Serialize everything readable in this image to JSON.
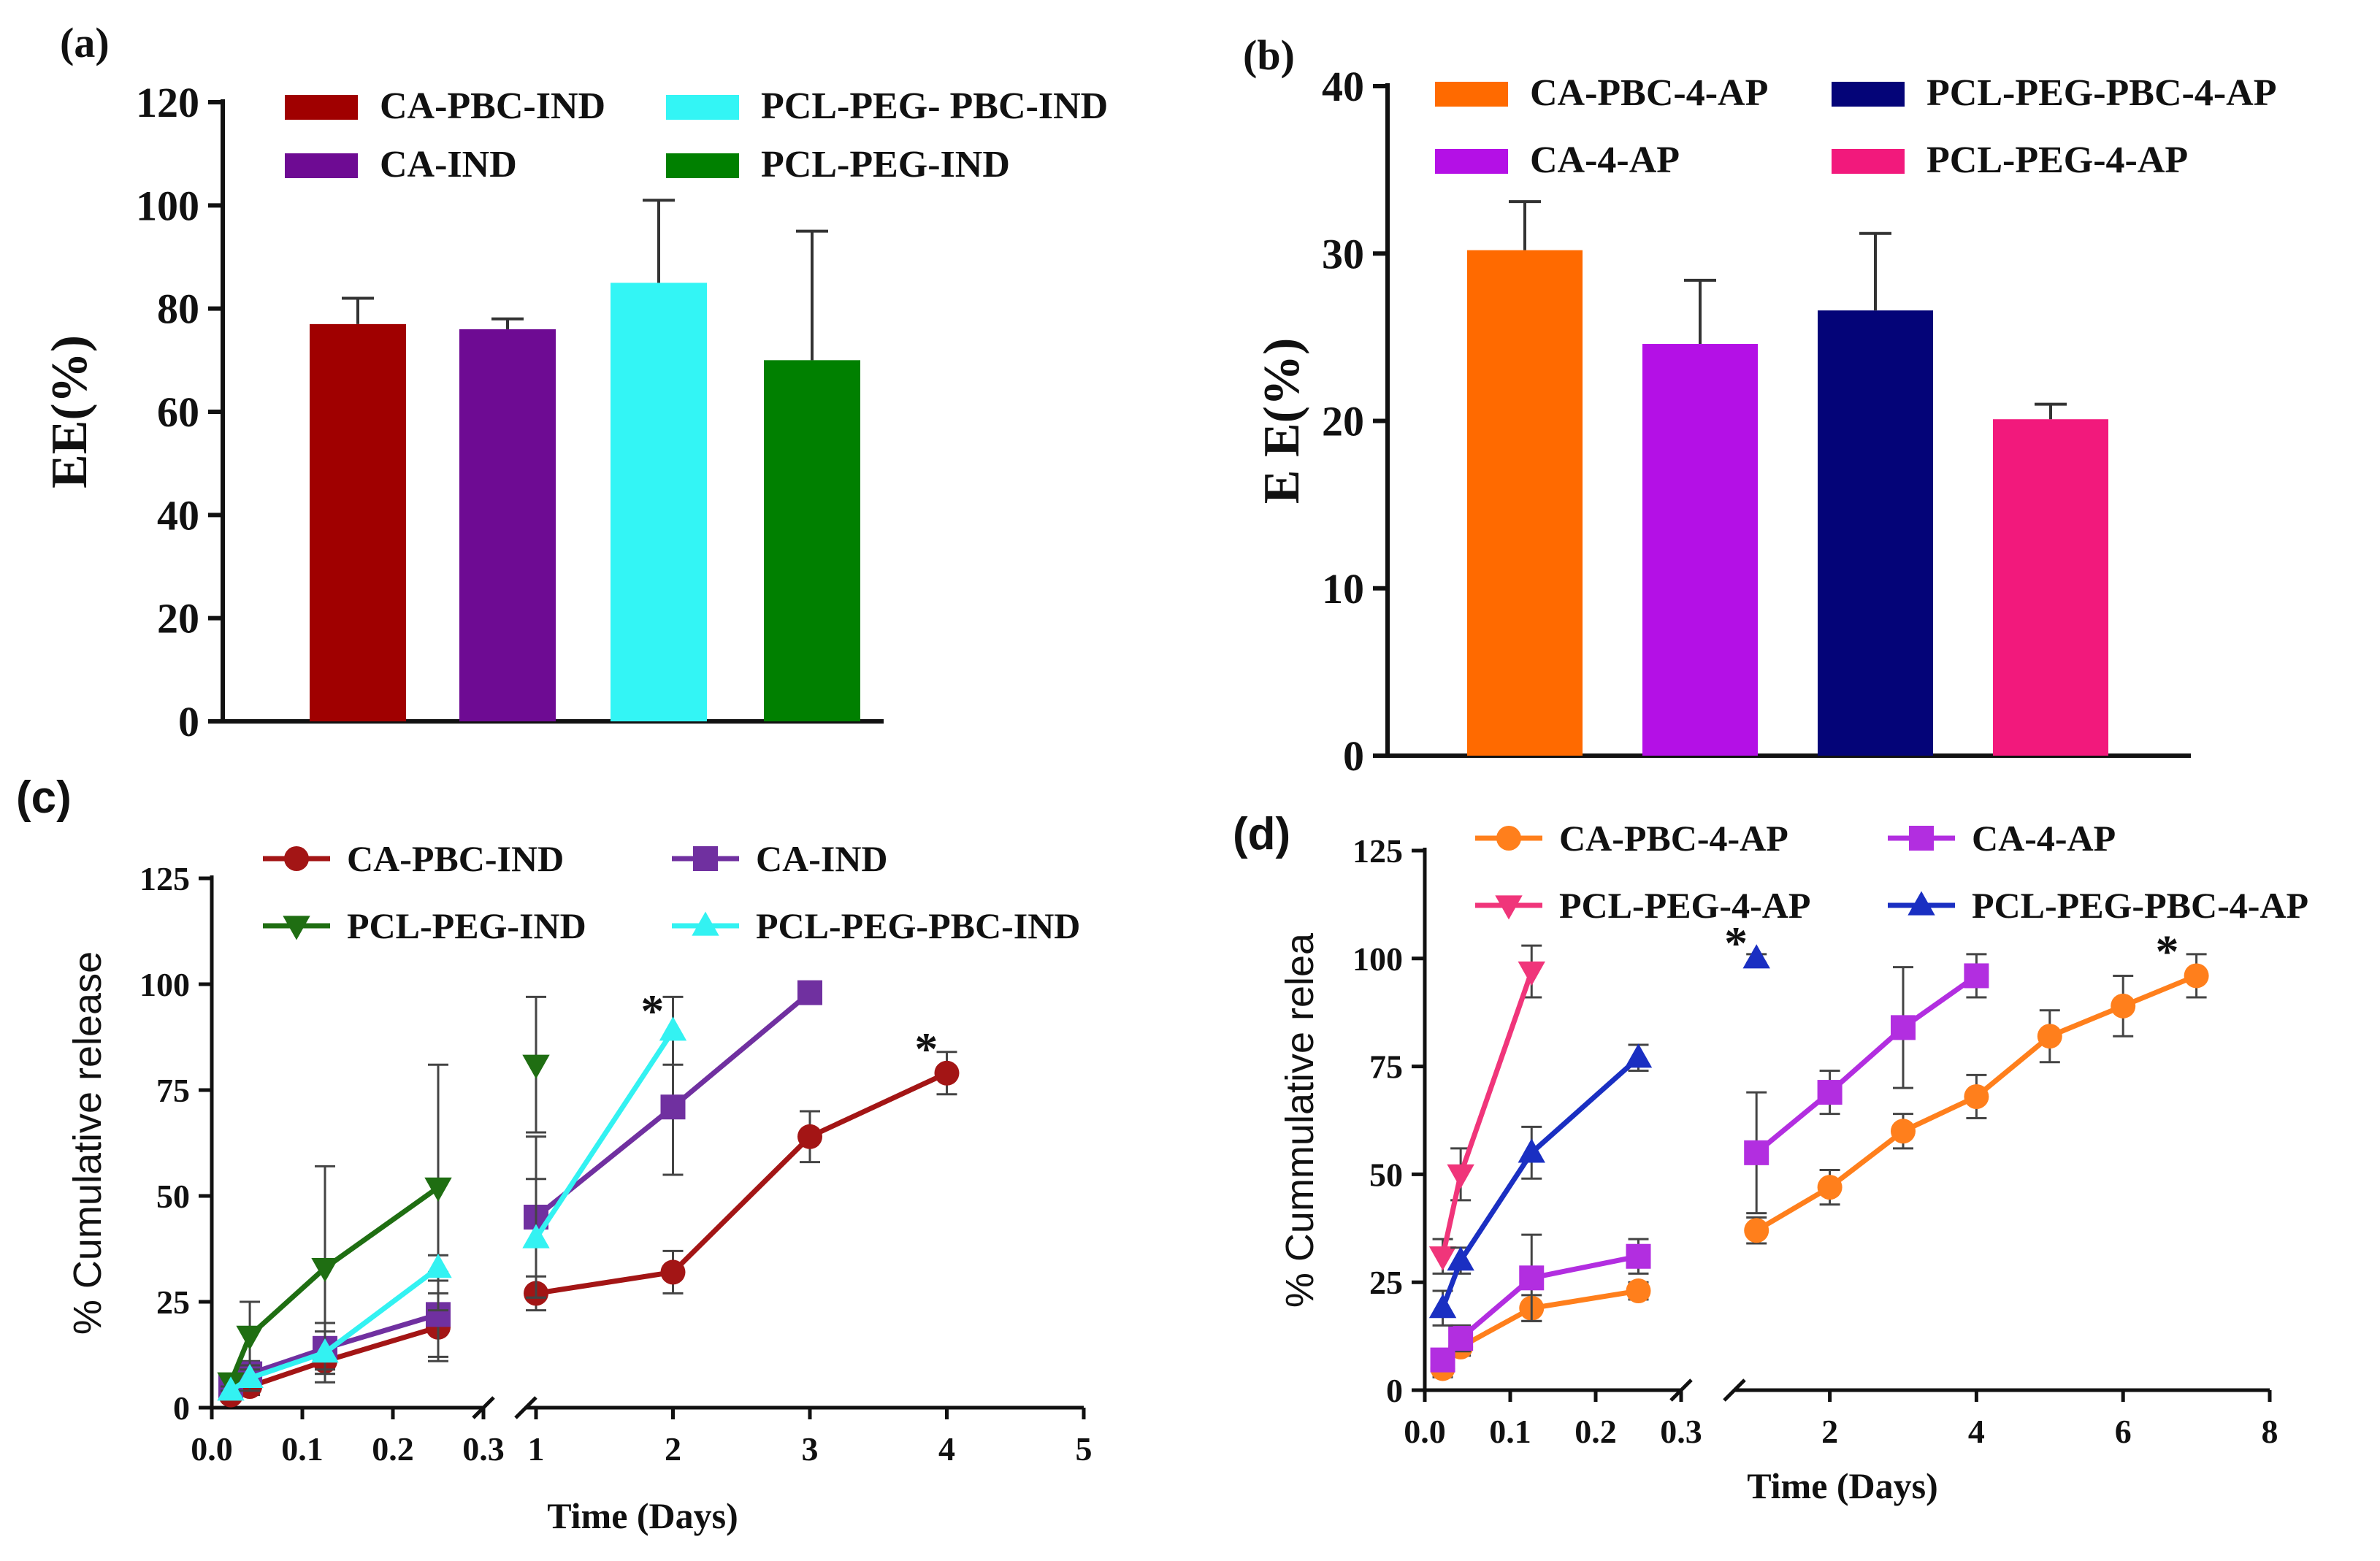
{
  "chart_data": [
    {
      "id": "a",
      "type": "bar",
      "panel_label": "(a)",
      "ylabel": "EE(%)",
      "ylim": [
        0,
        120
      ],
      "yticks": [
        "0",
        "20",
        "40",
        "60",
        "80",
        "100",
        "120"
      ],
      "categories": [
        "CA-PBC-IND",
        "CA-IND",
        "PCL-PEG- PBC-IND",
        "PCL-PEG-IND"
      ],
      "values": [
        77,
        76,
        85,
        70
      ],
      "errors": [
        5,
        2,
        16,
        25
      ],
      "colors": [
        "#a00000",
        "#6e0b93",
        "#33f5f5",
        "#008000"
      ],
      "legend": [
        {
          "label": "CA-PBC-IND",
          "color": "#a00000"
        },
        {
          "label": "PCL-PEG- PBC-IND",
          "color": "#33f5f5"
        },
        {
          "label": "CA-IND",
          "color": "#6e0b93"
        },
        {
          "label": "PCL-PEG-IND",
          "color": "#008000"
        }
      ]
    },
    {
      "id": "b",
      "type": "bar",
      "panel_label": "(b)",
      "ylabel": "E E(%)",
      "ylim": [
        0,
        40
      ],
      "yticks": [
        "0",
        "10",
        "20",
        "30",
        "40"
      ],
      "categories": [
        "CA-PBC-4-AP",
        "CA-4-AP",
        "PCL-PEG-PBC-4-AP",
        "PCL-PEG-4-AP"
      ],
      "values": [
        30.2,
        24.6,
        26.6,
        20.1
      ],
      "errors": [
        2.9,
        3.8,
        4.6,
        0.9
      ],
      "colors": [
        "#ff6a00",
        "#b410e6",
        "#040478",
        "#f2197c"
      ],
      "legend": [
        {
          "label": "CA-PBC-4-AP",
          "color": "#ff6a00"
        },
        {
          "label": "PCL-PEG-PBC-4-AP",
          "color": "#040478"
        },
        {
          "label": "CA-4-AP",
          "color": "#b410e6"
        },
        {
          "label": "PCL-PEG-4-AP",
          "color": "#f2197c"
        }
      ]
    },
    {
      "id": "c",
      "type": "line",
      "panel_label": "(c)",
      "ylabel": "% Cumulative release",
      "xlabel": "Time (Days)",
      "ylim": [
        0,
        125
      ],
      "yticks": [
        "0",
        "25",
        "50",
        "75",
        "100",
        "125"
      ],
      "x_segments": [
        {
          "range": [
            0,
            0.3
          ],
          "ticks": [
            "0.0",
            "0.1",
            "0.2",
            "0.3"
          ]
        },
        {
          "range": [
            1,
            5
          ],
          "ticks": [
            "1",
            "2",
            "3",
            "4",
            "5"
          ]
        }
      ],
      "series": [
        {
          "name": "CA-PBC-IND",
          "color": "#a31515",
          "marker": "circle",
          "x": [
            0.021,
            0.042,
            0.125,
            0.25,
            1,
            2,
            3,
            4
          ],
          "y": [
            3,
            5,
            11,
            19,
            27,
            32,
            64,
            79
          ],
          "err": [
            1,
            2,
            5,
            8,
            4,
            5,
            6,
            5
          ]
        },
        {
          "name": "CA-IND",
          "color": "#7030a0",
          "marker": "square",
          "x": [
            0.021,
            0.042,
            0.125,
            0.25,
            1,
            2,
            3
          ],
          "y": [
            5,
            8,
            14,
            22,
            45,
            71,
            98
          ],
          "err": [
            2,
            3,
            6,
            10,
            19,
            16,
            2
          ]
        },
        {
          "name": "PCL-PEG-IND",
          "color": "#1f6e12",
          "marker": "tri-down",
          "x": [
            0.021,
            0.042,
            0.125,
            0.25,
            1
          ],
          "y": [
            6,
            17,
            33,
            52,
            81
          ],
          "err": [
            2,
            8,
            24,
            29,
            16
          ]
        },
        {
          "name": "PCL-PEG-PBC-IND",
          "color": "#33f2f2",
          "marker": "tri-up",
          "x": [
            0.021,
            0.042,
            0.125,
            0.25,
            1,
            2
          ],
          "y": [
            4,
            7,
            13,
            33,
            40,
            89
          ],
          "err": [
            1,
            3,
            5,
            3,
            14,
            8
          ]
        }
      ],
      "annotations": [
        {
          "text": "*",
          "x": 1.85,
          "y": 90
        },
        {
          "text": "*",
          "x": 3.85,
          "y": 81
        }
      ],
      "legend": [
        {
          "label": "CA-PBC-IND",
          "color": "#a31515",
          "marker": "circle"
        },
        {
          "label": "CA-IND",
          "color": "#7030a0",
          "marker": "square"
        },
        {
          "label": "PCL-PEG-IND",
          "color": "#1f6e12",
          "marker": "tri-down"
        },
        {
          "label": "PCL-PEG-PBC-IND",
          "color": "#33f2f2",
          "marker": "tri-up"
        }
      ]
    },
    {
      "id": "d",
      "type": "line",
      "panel_label": "(d)",
      "ylabel": "% Cummulative relea",
      "xlabel": "Time (Days)",
      "ylim": [
        0,
        125
      ],
      "yticks": [
        "0",
        "25",
        "50",
        "75",
        "100",
        "125"
      ],
      "x_segments": [
        {
          "range": [
            0,
            0.3
          ],
          "ticks": [
            "0.0",
            "0.1",
            "0.2",
            "0.3"
          ]
        },
        {
          "range": [
            0.5,
            8
          ],
          "ticks": [
            "2",
            "4",
            "6",
            "8"
          ],
          "tick_values": [
            2,
            4,
            6,
            8
          ]
        }
      ],
      "series": [
        {
          "name": "CA-PBC-4-AP",
          "color": "#ff7f1c",
          "marker": "circle",
          "x": [
            0.021,
            0.042,
            0.125,
            0.25,
            1,
            2,
            3,
            4,
            5,
            6,
            7
          ],
          "y": [
            5,
            10,
            19,
            23,
            37,
            47,
            60,
            68,
            82,
            89,
            96
          ],
          "err": [
            2,
            2,
            3,
            2,
            3,
            4,
            4,
            5,
            6,
            7,
            5
          ]
        },
        {
          "name": "CA-4-AP",
          "color": "#b22ee0",
          "marker": "square",
          "x": [
            0.021,
            0.042,
            0.125,
            0.25,
            1,
            2,
            3,
            4
          ],
          "y": [
            7,
            12,
            26,
            31,
            55,
            69,
            84,
            96
          ],
          "err": [
            2,
            3,
            10,
            4,
            14,
            5,
            14,
            5
          ]
        },
        {
          "name": "PCL-PEG-4-AP",
          "color": "#f0357a",
          "marker": "tri-down",
          "x": [
            0.021,
            0.042,
            0.125
          ],
          "y": [
            31,
            50,
            97
          ],
          "err": [
            4,
            6,
            6
          ]
        },
        {
          "name": "PCL-PEG-PBC-4-AP",
          "color": "#1a2fc2",
          "marker": "tri-up",
          "x": [
            0.021,
            0.042,
            0.125,
            0.25,
            1
          ],
          "y": [
            19,
            30,
            55,
            77,
            100
          ],
          "err": [
            4,
            3,
            6,
            3,
            1
          ]
        }
      ],
      "annotations": [
        {
          "text": "*",
          "x": 0.72,
          "y": 100
        },
        {
          "text": "*",
          "x": 6.6,
          "y": 98
        }
      ],
      "legend": [
        {
          "label": "CA-PBC-4-AP",
          "color": "#ff7f1c",
          "marker": "circle"
        },
        {
          "label": "CA-4-AP",
          "color": "#b22ee0",
          "marker": "square"
        },
        {
          "label": "PCL-PEG-4-AP",
          "color": "#f0357a",
          "marker": "tri-down"
        },
        {
          "label": "PCL-PEG-PBC-4-AP",
          "color": "#1a2fc2",
          "marker": "tri-up"
        }
      ]
    }
  ]
}
